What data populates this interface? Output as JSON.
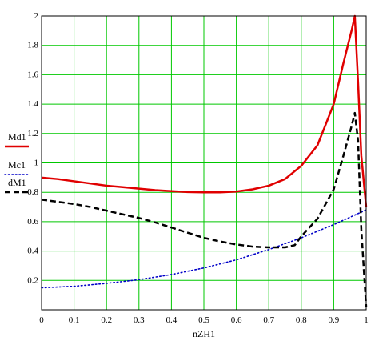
{
  "chart_data": {
    "type": "line",
    "xlabel": "nZH1",
    "ylabel": "",
    "xlim": [
      0,
      1
    ],
    "ylim": [
      0,
      2
    ],
    "grid": true,
    "grid_color": "#00c800",
    "legend_position": "left",
    "x_ticks": [
      "0",
      "0.1",
      "0.2",
      "0.3",
      "0.4",
      "0.5",
      "0.6",
      "0.7",
      "0.8",
      "0.9",
      "1"
    ],
    "y_ticks": [
      "0.2",
      "0.4",
      "0.6",
      "0.8",
      "1",
      "1.2",
      "1.4",
      "1.6",
      "1.8",
      "2"
    ],
    "series": [
      {
        "name": "Md1",
        "color": "#e00000",
        "style": "solid",
        "x": [
          0,
          0.05,
          0.1,
          0.15,
          0.2,
          0.25,
          0.3,
          0.35,
          0.4,
          0.45,
          0.5,
          0.55,
          0.6,
          0.65,
          0.7,
          0.75,
          0.8,
          0.85,
          0.9,
          0.93,
          0.955,
          0.965,
          0.975,
          0.985,
          1.0
        ],
        "y": [
          0.9,
          0.89,
          0.875,
          0.86,
          0.845,
          0.835,
          0.825,
          0.815,
          0.808,
          0.802,
          0.8,
          0.8,
          0.805,
          0.82,
          0.845,
          0.89,
          0.98,
          1.12,
          1.4,
          1.68,
          1.9,
          2.0,
          1.55,
          1.05,
          0.7
        ]
      },
      {
        "name": "Mc1",
        "color": "#0000c8",
        "style": "dotted",
        "x": [
          0,
          0.1,
          0.2,
          0.3,
          0.4,
          0.5,
          0.6,
          0.7,
          0.8,
          0.9,
          1.0
        ],
        "y": [
          0.15,
          0.16,
          0.18,
          0.205,
          0.24,
          0.285,
          0.34,
          0.41,
          0.49,
          0.58,
          0.68
        ]
      },
      {
        "name": "dM1",
        "color": "#000000",
        "style": "dashed",
        "x": [
          0,
          0.05,
          0.1,
          0.15,
          0.2,
          0.25,
          0.3,
          0.35,
          0.4,
          0.45,
          0.5,
          0.55,
          0.6,
          0.65,
          0.7,
          0.75,
          0.78,
          0.8,
          0.85,
          0.9,
          0.93,
          0.955,
          0.965,
          0.975,
          0.985,
          1.0
        ],
        "y": [
          0.75,
          0.735,
          0.72,
          0.7,
          0.675,
          0.65,
          0.625,
          0.595,
          0.56,
          0.525,
          0.49,
          0.465,
          0.445,
          0.43,
          0.425,
          0.425,
          0.44,
          0.5,
          0.62,
          0.82,
          1.05,
          1.25,
          1.34,
          1.15,
          0.55,
          0.02
        ]
      }
    ]
  }
}
